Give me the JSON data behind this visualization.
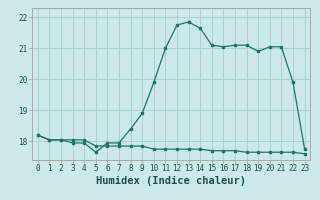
{
  "line1_x": [
    0,
    1,
    2,
    3,
    4,
    5,
    6,
    7,
    8,
    9,
    10,
    11,
    12,
    13,
    14,
    15,
    16,
    17,
    18,
    19,
    20,
    21,
    22,
    23
  ],
  "line1_y": [
    18.2,
    18.05,
    18.05,
    17.95,
    17.95,
    17.65,
    17.95,
    17.95,
    18.4,
    18.9,
    19.9,
    21.0,
    21.75,
    21.85,
    21.65,
    21.1,
    21.05,
    21.1,
    21.1,
    20.9,
    21.05,
    21.05,
    19.9,
    17.75
  ],
  "line2_x": [
    0,
    1,
    2,
    3,
    4,
    5,
    6,
    7,
    8,
    9,
    10,
    11,
    12,
    13,
    14,
    15,
    16,
    17,
    18,
    19,
    20,
    21,
    22,
    23
  ],
  "line2_y": [
    18.2,
    18.05,
    18.05,
    18.05,
    18.05,
    17.85,
    17.85,
    17.85,
    17.85,
    17.85,
    17.75,
    17.75,
    17.75,
    17.75,
    17.75,
    17.7,
    17.7,
    17.7,
    17.65,
    17.65,
    17.65,
    17.65,
    17.65,
    17.6
  ],
  "line_color": "#1a7a6a",
  "bg_color": "#cce8e8",
  "grid_color": "#b0d0d0",
  "xlabel": "Humidex (Indice chaleur)",
  "ylim": [
    17.4,
    22.3
  ],
  "xlim": [
    -0.5,
    23.5
  ],
  "yticks": [
    18,
    19,
    20,
    21,
    22
  ],
  "xticks": [
    0,
    1,
    2,
    3,
    4,
    5,
    6,
    7,
    8,
    9,
    10,
    11,
    12,
    13,
    14,
    15,
    16,
    17,
    18,
    19,
    20,
    21,
    22,
    23
  ],
  "tick_fontsize": 5.5,
  "xlabel_fontsize": 7.5
}
